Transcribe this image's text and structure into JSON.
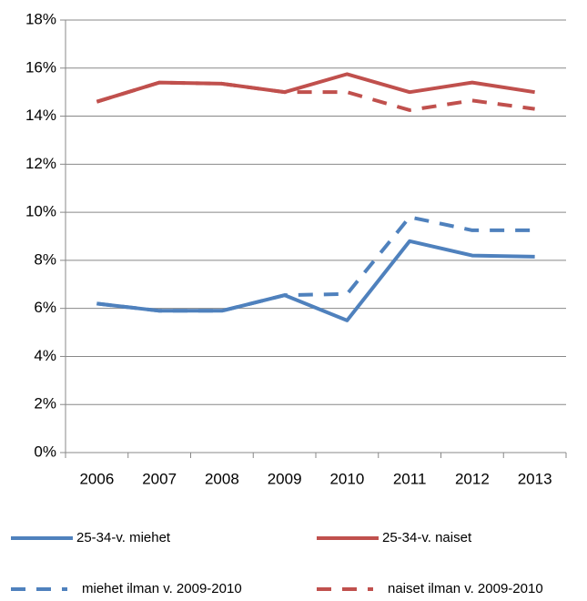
{
  "chart_data": {
    "type": "line",
    "categories": [
      "2006",
      "2007",
      "2008",
      "2009",
      "2010",
      "2011",
      "2012",
      "2013"
    ],
    "series": [
      {
        "name": "25-34-v. miehet",
        "color": "#4f81bd",
        "dash": "solid",
        "values": [
          6.2,
          5.9,
          5.9,
          6.55,
          5.5,
          8.8,
          8.2,
          8.15
        ]
      },
      {
        "name": "25-34-v. naiset",
        "color": "#c0504d",
        "dash": "solid",
        "values": [
          14.6,
          15.4,
          15.35,
          15.0,
          15.75,
          15.0,
          15.4,
          15.0
        ]
      },
      {
        "name": "miehet ilman v. 2009-2010",
        "color": "#4f81bd",
        "dash": "dashed",
        "values": [
          6.2,
          5.9,
          5.9,
          6.55,
          6.6,
          9.8,
          9.25,
          9.25
        ]
      },
      {
        "name": "naiset ilman v. 2009-2010",
        "color": "#c0504d",
        "dash": "dashed",
        "values": [
          14.6,
          15.4,
          15.35,
          15.0,
          15.0,
          14.25,
          14.65,
          14.3
        ]
      }
    ],
    "ylim": [
      0,
      18
    ],
    "yticks": [
      {
        "value": 0,
        "label": "0%"
      },
      {
        "value": 2,
        "label": "2%"
      },
      {
        "value": 4,
        "label": "4%"
      },
      {
        "value": 6,
        "label": "6%"
      },
      {
        "value": 8,
        "label": "8%"
      },
      {
        "value": 10,
        "label": "10%"
      },
      {
        "value": 12,
        "label": "12%"
      },
      {
        "value": 14,
        "label": "14%"
      },
      {
        "value": 16,
        "label": "16%"
      },
      {
        "value": 18,
        "label": "18%"
      }
    ],
    "grid": true,
    "legend": "bottom"
  }
}
